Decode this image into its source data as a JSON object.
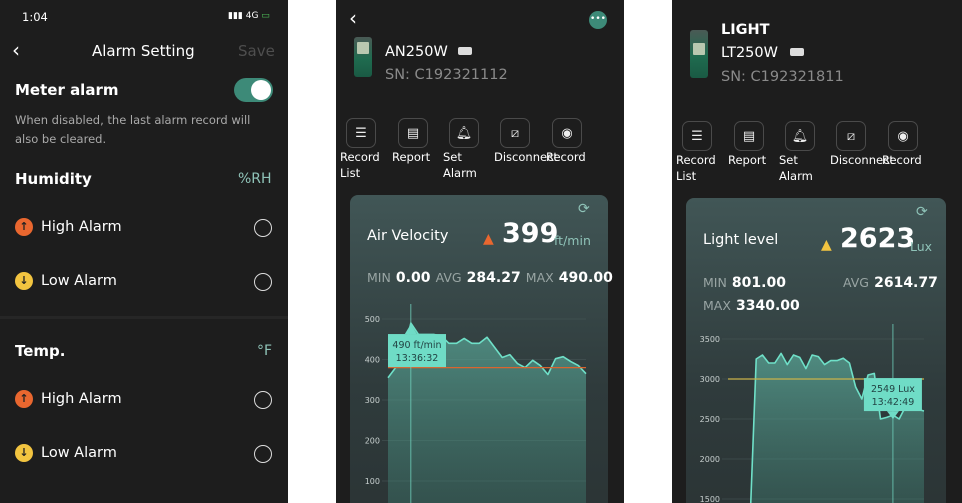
{
  "alarm_setting": {
    "status_time": "1:04",
    "network": "4G",
    "title": "Alarm Setting",
    "save_label": "Save",
    "meter_alarm_label": "Meter alarm",
    "meter_alarm_enabled": true,
    "meter_alarm_note": "When disabled, the last alarm record will also be cleared.",
    "sections": [
      {
        "title": "Humidity",
        "unit": "%RH",
        "items": [
          {
            "label": "High Alarm",
            "icon": "arrow-up-icon",
            "color": "#e9672f"
          },
          {
            "label": "Low Alarm",
            "icon": "arrow-down-icon",
            "color": "#f2c440"
          }
        ]
      },
      {
        "title": "Temp.",
        "unit": "°F",
        "items": [
          {
            "label": "High Alarm",
            "icon": "arrow-up-icon",
            "color": "#e9672f"
          },
          {
            "label": "Low Alarm",
            "icon": "arrow-down-icon",
            "color": "#f2c440"
          }
        ]
      }
    ]
  },
  "tools": [
    "Record List",
    "Report",
    "Set Alarm",
    "Disconnect",
    "Record"
  ],
  "devices": [
    {
      "model": "AN250W",
      "sn": "SN: C192321112",
      "measure": "Air Velocity",
      "value": "399",
      "unit": "ft/min",
      "warn_color": "#e9672f",
      "stats": {
        "min_label": "MIN",
        "min": "0.00",
        "avg_label": "AVG",
        "avg": "284.27",
        "max_label": "MAX",
        "max": "490.00"
      }
    },
    {
      "category": "LIGHT",
      "model": "LT250W",
      "sn": "SN: C192321811",
      "measure": "Light level",
      "value": "2623",
      "unit": "Lux",
      "warn_color": "#f2c440",
      "stats": {
        "min_label": "MIN",
        "min": "801.00",
        "avg_label": "AVG",
        "avg": "2614.77",
        "max_label": "MAX",
        "max": "3340.00"
      }
    }
  ],
  "chart_data": [
    {
      "type": "area",
      "ylim": [
        100,
        500
      ],
      "yticks": [
        "500",
        "400",
        "300",
        "200",
        "100"
      ],
      "threshold": 380,
      "threshold_color": "#d9652f",
      "line_color": "#6fe0c8",
      "values": [
        355,
        380,
        410,
        490,
        462,
        462,
        462,
        458,
        440,
        440,
        452,
        440,
        440,
        455,
        430,
        405,
        412,
        390,
        380,
        398,
        385,
        363,
        402,
        407,
        395,
        385,
        365
      ],
      "tooltip": {
        "index": 3,
        "value": "490 ft/min",
        "time": "13:36:32"
      }
    },
    {
      "type": "area",
      "ylim": [
        1500,
        3500
      ],
      "yticks": [
        "3500",
        "3000",
        "2500",
        "2000",
        "1500"
      ],
      "threshold": 3000,
      "threshold_color": "#c9b24a",
      "line_color": "#6fe0c8",
      "values": [
        800,
        3250,
        3300,
        3200,
        3200,
        3320,
        3180,
        3300,
        3270,
        3130,
        3300,
        3280,
        3180,
        3230,
        3230,
        3260,
        3200,
        2900,
        2750,
        3050,
        3070,
        2500,
        2520,
        2549,
        2500,
        2650,
        2700,
        2620,
        2600
      ],
      "tooltip": {
        "index": 23,
        "value": "2549 Lux",
        "time": "13:42:49"
      }
    }
  ]
}
